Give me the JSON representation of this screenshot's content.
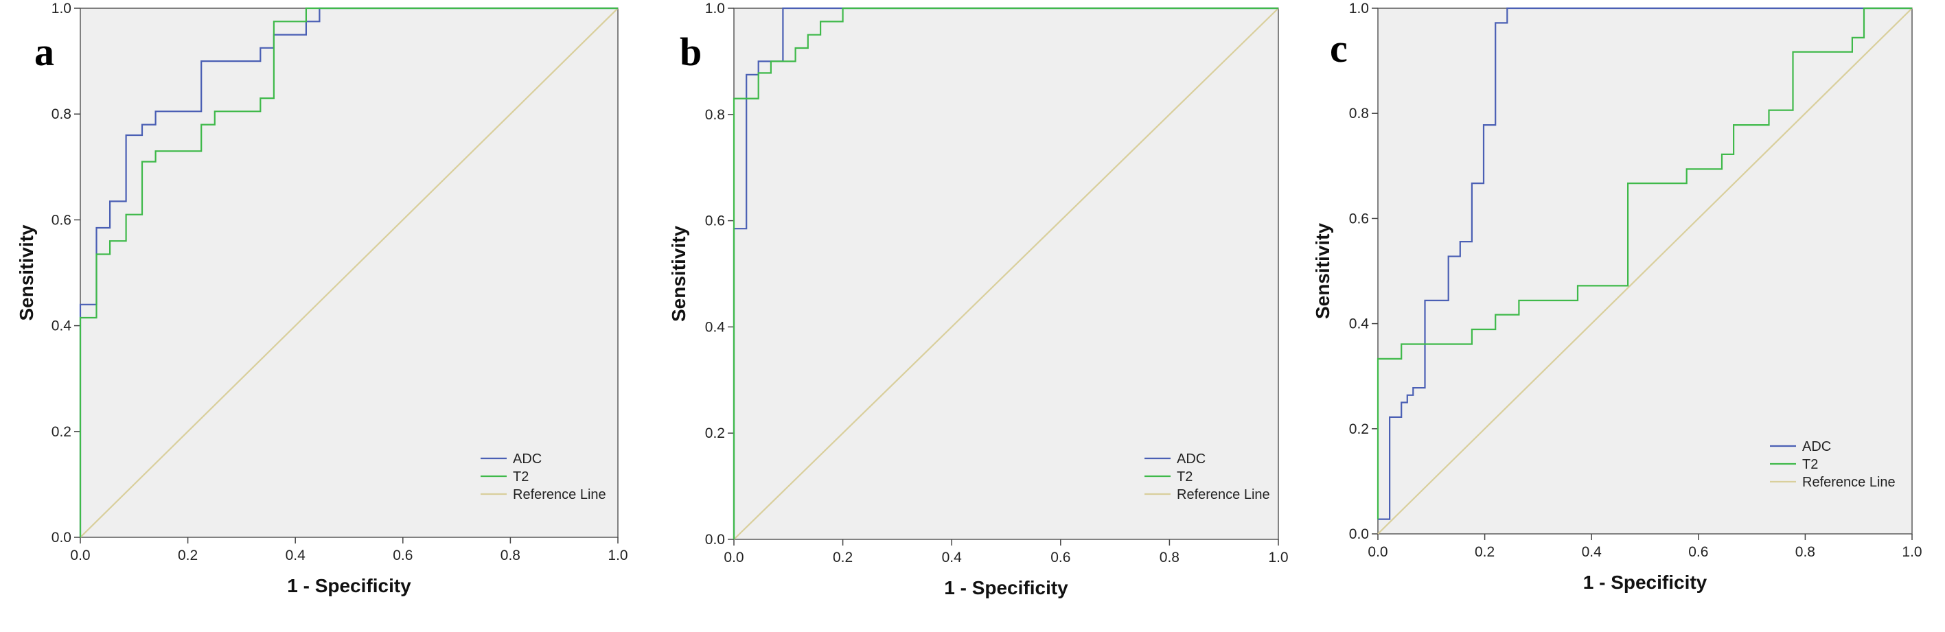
{
  "chart_data": [
    {
      "type": "line",
      "panel_label": "a",
      "xlabel": "1 - Specificity",
      "ylabel": "Sensitivity",
      "xlim": [
        0,
        1
      ],
      "ylim": [
        0,
        1
      ],
      "xticks": [
        "0.0",
        "0.2",
        "0.4",
        "0.6",
        "0.8",
        "1.0"
      ],
      "yticks": [
        "0.0",
        "0.2",
        "0.4",
        "0.6",
        "0.8",
        "1.0"
      ],
      "legend_position": "bottom-right",
      "series": [
        {
          "name": "ADC",
          "color": "#4a5fb4",
          "points": [
            [
              0,
              0
            ],
            [
              0,
              0.44
            ],
            [
              0.03,
              0.44
            ],
            [
              0.03,
              0.585
            ],
            [
              0.055,
              0.585
            ],
            [
              0.055,
              0.635
            ],
            [
              0.085,
              0.635
            ],
            [
              0.085,
              0.76
            ],
            [
              0.115,
              0.76
            ],
            [
              0.115,
              0.78
            ],
            [
              0.14,
              0.78
            ],
            [
              0.14,
              0.805
            ],
            [
              0.225,
              0.805
            ],
            [
              0.225,
              0.9
            ],
            [
              0.335,
              0.9
            ],
            [
              0.335,
              0.925
            ],
            [
              0.36,
              0.925
            ],
            [
              0.36,
              0.95
            ],
            [
              0.42,
              0.95
            ],
            [
              0.42,
              0.975
            ],
            [
              0.445,
              0.975
            ],
            [
              0.445,
              1.0
            ],
            [
              1.0,
              1.0
            ]
          ]
        },
        {
          "name": "T2",
          "color": "#3fb94a",
          "points": [
            [
              0,
              0
            ],
            [
              0,
              0.415
            ],
            [
              0.03,
              0.415
            ],
            [
              0.03,
              0.535
            ],
            [
              0.055,
              0.535
            ],
            [
              0.055,
              0.56
            ],
            [
              0.085,
              0.56
            ],
            [
              0.085,
              0.61
            ],
            [
              0.115,
              0.61
            ],
            [
              0.115,
              0.71
            ],
            [
              0.14,
              0.71
            ],
            [
              0.14,
              0.73
            ],
            [
              0.225,
              0.73
            ],
            [
              0.225,
              0.78
            ],
            [
              0.25,
              0.78
            ],
            [
              0.25,
              0.805
            ],
            [
              0.335,
              0.805
            ],
            [
              0.335,
              0.83
            ],
            [
              0.36,
              0.83
            ],
            [
              0.36,
              0.975
            ],
            [
              0.42,
              0.975
            ],
            [
              0.42,
              1.0
            ],
            [
              1.0,
              1.0
            ]
          ]
        },
        {
          "name": "Reference Line",
          "color": "#d9cf9c",
          "points": [
            [
              0,
              0
            ],
            [
              1,
              1
            ]
          ]
        }
      ]
    },
    {
      "type": "line",
      "panel_label": "b",
      "xlabel": "1 - Specificity",
      "ylabel": "Sensitivity",
      "xlim": [
        0,
        1
      ],
      "ylim": [
        0,
        1
      ],
      "xticks": [
        "0.0",
        "0.2",
        "0.4",
        "0.6",
        "0.8",
        "1.0"
      ],
      "yticks": [
        "0.0",
        "0.2",
        "0.4",
        "0.6",
        "0.8",
        "1.0"
      ],
      "legend_position": "bottom-right",
      "series": [
        {
          "name": "ADC",
          "color": "#4a5fb4",
          "points": [
            [
              0,
              0
            ],
            [
              0,
              0.585
            ],
            [
              0.023,
              0.585
            ],
            [
              0.023,
              0.875
            ],
            [
              0.045,
              0.875
            ],
            [
              0.045,
              0.9
            ],
            [
              0.09,
              0.9
            ],
            [
              0.09,
              1.0
            ],
            [
              1.0,
              1.0
            ]
          ]
        },
        {
          "name": "T2",
          "color": "#3fb94a",
          "points": [
            [
              0,
              0
            ],
            [
              0,
              0.83
            ],
            [
              0.045,
              0.83
            ],
            [
              0.045,
              0.878
            ],
            [
              0.068,
              0.878
            ],
            [
              0.068,
              0.9
            ],
            [
              0.113,
              0.9
            ],
            [
              0.113,
              0.925
            ],
            [
              0.136,
              0.925
            ],
            [
              0.136,
              0.95
            ],
            [
              0.159,
              0.95
            ],
            [
              0.159,
              0.975
            ],
            [
              0.2,
              0.975
            ],
            [
              0.2,
              1.0
            ],
            [
              1.0,
              1.0
            ]
          ]
        },
        {
          "name": "Reference Line",
          "color": "#d9cf9c",
          "points": [
            [
              0,
              0
            ],
            [
              1,
              1
            ]
          ]
        }
      ]
    },
    {
      "type": "line",
      "panel_label": "c",
      "xlabel": "1 - Specificity",
      "ylabel": "Sensitivity",
      "xlim": [
        0,
        1
      ],
      "ylim": [
        0,
        1
      ],
      "xticks": [
        "0.0",
        "0.2",
        "0.4",
        "0.6",
        "0.8",
        "1.0"
      ],
      "yticks": [
        "0.0",
        "0.2",
        "0.4",
        "0.6",
        "0.8",
        "1.0"
      ],
      "legend_position": "bottom-right",
      "series": [
        {
          "name": "ADC",
          "color": "#4a5fb4",
          "points": [
            [
              0,
              0.028
            ],
            [
              0.022,
              0.028
            ],
            [
              0.022,
              0.222
            ],
            [
              0.044,
              0.222
            ],
            [
              0.044,
              0.25
            ],
            [
              0.055,
              0.25
            ],
            [
              0.055,
              0.264
            ],
            [
              0.066,
              0.264
            ],
            [
              0.066,
              0.278
            ],
            [
              0.088,
              0.278
            ],
            [
              0.088,
              0.444
            ],
            [
              0.132,
              0.444
            ],
            [
              0.132,
              0.528
            ],
            [
              0.154,
              0.528
            ],
            [
              0.154,
              0.556
            ],
            [
              0.176,
              0.556
            ],
            [
              0.176,
              0.667
            ],
            [
              0.198,
              0.667
            ],
            [
              0.198,
              0.778
            ],
            [
              0.22,
              0.778
            ],
            [
              0.22,
              0.972
            ],
            [
              0.242,
              0.972
            ],
            [
              0.242,
              1.0
            ],
            [
              1.0,
              1.0
            ]
          ]
        },
        {
          "name": "T2",
          "color": "#3fb94a",
          "points": [
            [
              0,
              0.028
            ],
            [
              0,
              0.333
            ],
            [
              0.044,
              0.333
            ],
            [
              0.044,
              0.361
            ],
            [
              0.176,
              0.361
            ],
            [
              0.176,
              0.389
            ],
            [
              0.22,
              0.389
            ],
            [
              0.22,
              0.417
            ],
            [
              0.264,
              0.417
            ],
            [
              0.264,
              0.444
            ],
            [
              0.374,
              0.444
            ],
            [
              0.374,
              0.472
            ],
            [
              0.468,
              0.472
            ],
            [
              0.468,
              0.667
            ],
            [
              0.578,
              0.667
            ],
            [
              0.578,
              0.694
            ],
            [
              0.644,
              0.694
            ],
            [
              0.644,
              0.722
            ],
            [
              0.666,
              0.722
            ],
            [
              0.666,
              0.778
            ],
            [
              0.732,
              0.778
            ],
            [
              0.732,
              0.806
            ],
            [
              0.777,
              0.806
            ],
            [
              0.777,
              0.917
            ],
            [
              0.888,
              0.917
            ],
            [
              0.888,
              0.944
            ],
            [
              0.91,
              0.944
            ],
            [
              0.91,
              1.0
            ],
            [
              1.0,
              1.0
            ]
          ]
        },
        {
          "name": "Reference Line",
          "color": "#d9cf9c",
          "points": [
            [
              0,
              0
            ],
            [
              1,
              1
            ]
          ]
        }
      ]
    }
  ]
}
